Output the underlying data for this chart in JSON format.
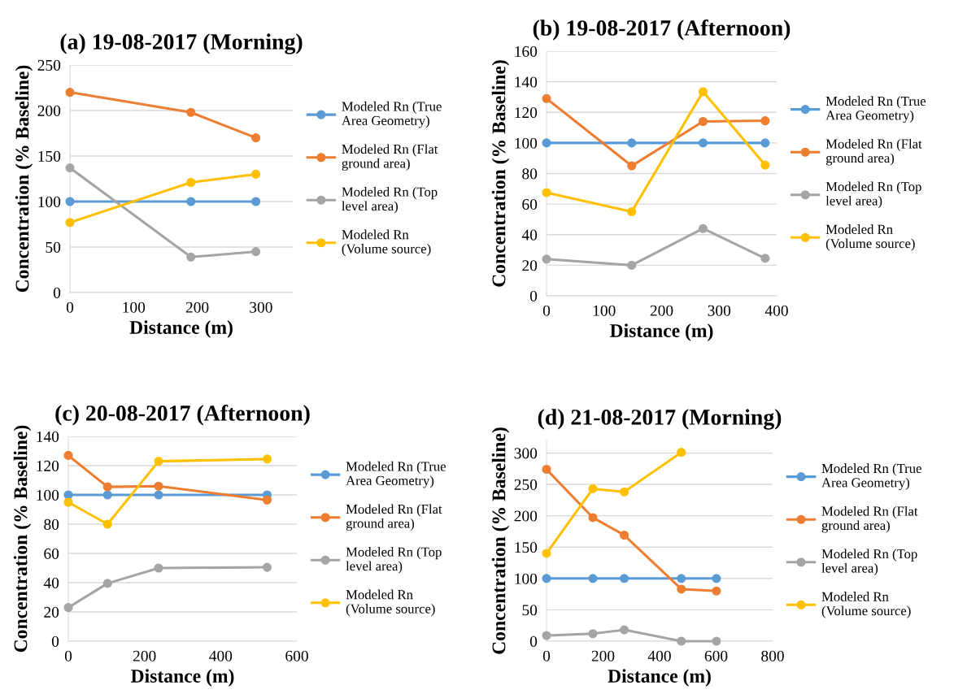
{
  "chart_data": [
    {
      "type": "line",
      "title": "(a) 19-08-2017 (Morning)",
      "xlabel": "Distance (m)",
      "ylabel": "Concentration (% Baseline)",
      "xlim": [
        0,
        350
      ],
      "xticks": [
        0,
        100,
        200,
        300
      ],
      "ylim": [
        0,
        250
      ],
      "yticks": [
        0,
        50,
        100,
        150,
        200,
        250
      ],
      "grid": "y",
      "legend": "right",
      "marker": "circle",
      "x": [
        0,
        190,
        292
      ],
      "series": [
        {
          "name": "Modeled Rn (True\nArea Geometry)",
          "color": "#5b9bd5",
          "values": [
            100,
            100,
            100
          ]
        },
        {
          "name": "Modeled Rn (Flat\nground area)",
          "color": "#ed7d31",
          "values": [
            220,
            198,
            170
          ]
        },
        {
          "name": "Modeled Rn (Top\nlevel area)",
          "color": "#a5a5a5",
          "values": [
            137,
            39,
            45
          ]
        },
        {
          "name": "Modeled Rn\n(Volume source)",
          "color": "#ffc000",
          "values": [
            77,
            121,
            130
          ]
        }
      ]
    },
    {
      "type": "line",
      "title": "(b) 19-08-2017 (Afternoon)",
      "xlabel": "Distance (m)",
      "ylabel": "Concentration (% Baseline)",
      "xlim": [
        0,
        400
      ],
      "xticks": [
        0,
        100,
        200,
        300,
        400
      ],
      "ylim": [
        0,
        160
      ],
      "yticks": [
        0,
        20,
        40,
        60,
        80,
        100,
        120,
        140,
        160
      ],
      "grid": "y",
      "legend": "right",
      "marker": "circle",
      "x": [
        0,
        148,
        272,
        380
      ],
      "series": [
        {
          "name": "Modeled Rn (True\nArea Geometry)",
          "color": "#5b9bd5",
          "values": [
            100,
            100,
            100,
            100
          ]
        },
        {
          "name": "Modeled Rn (Flat\nground area)",
          "color": "#ed7d31",
          "values": [
            129,
            85,
            114,
            114.5
          ]
        },
        {
          "name": "Modeled Rn (Top\nlevel area)",
          "color": "#a5a5a5",
          "values": [
            24,
            20,
            44,
            24.5
          ]
        },
        {
          "name": "Modeled Rn\n(Volume source)",
          "color": "#ffc000",
          "values": [
            67.5,
            55,
            133.5,
            85.5
          ]
        }
      ]
    },
    {
      "type": "line",
      "title": "(c) 20-08-2017 (Afternoon)",
      "xlabel": "Distance (m)",
      "ylabel": "Concentration (% Baseline)",
      "xlim": [
        0,
        600
      ],
      "xticks": [
        0,
        200,
        400,
        600
      ],
      "ylim": [
        0,
        140
      ],
      "yticks": [
        0,
        20,
        40,
        60,
        80,
        100,
        120,
        140
      ],
      "grid": "y",
      "legend": "right",
      "marker": "circle",
      "x": [
        0,
        103,
        237,
        522
      ],
      "series": [
        {
          "name": "Modeled Rn (True\nArea Geometry)",
          "color": "#5b9bd5",
          "values": [
            100,
            100,
            100,
            100
          ]
        },
        {
          "name": "Modeled Rn (Flat\nground area)",
          "color": "#ed7d31",
          "values": [
            127,
            105.5,
            106,
            96.5
          ]
        },
        {
          "name": "Modeled Rn (Top\nlevel area)",
          "color": "#a5a5a5",
          "values": [
            23,
            39.5,
            50,
            50.5
          ]
        },
        {
          "name": "Modeled Rn\n(Volume source)",
          "color": "#ffc000",
          "values": [
            95,
            80,
            123,
            124.5
          ]
        }
      ]
    },
    {
      "type": "line",
      "title": "(d) 21-08-2017 (Morning)",
      "xlabel": "Distance (m)",
      "ylabel": "Concentration (% Baseline)",
      "xlim": [
        0,
        800
      ],
      "xticks": [
        0,
        200,
        400,
        600,
        800
      ],
      "ylim": [
        0,
        320
      ],
      "yticks": [
        0,
        50,
        100,
        150,
        200,
        250,
        300
      ],
      "grid": "y",
      "legend": "right",
      "marker": "circle",
      "x": [
        0,
        164,
        275,
        477,
        601
      ],
      "series": [
        {
          "name": "Modeled Rn (True\nArea Geometry)",
          "color": "#5b9bd5",
          "values": [
            100,
            100,
            100,
            100,
            100
          ]
        },
        {
          "name": "Modeled Rn (Flat\nground area)",
          "color": "#ed7d31",
          "values": [
            274,
            197,
            169,
            83,
            80
          ]
        },
        {
          "name": "Modeled Rn (Top\nlevel area)",
          "color": "#a5a5a5",
          "values": [
            9,
            12,
            18,
            0,
            0
          ]
        },
        {
          "name": "Modeled Rn\n(Volume source)",
          "color": "#ffc000",
          "values": [
            140,
            243,
            238,
            301,
            null
          ]
        }
      ]
    }
  ]
}
